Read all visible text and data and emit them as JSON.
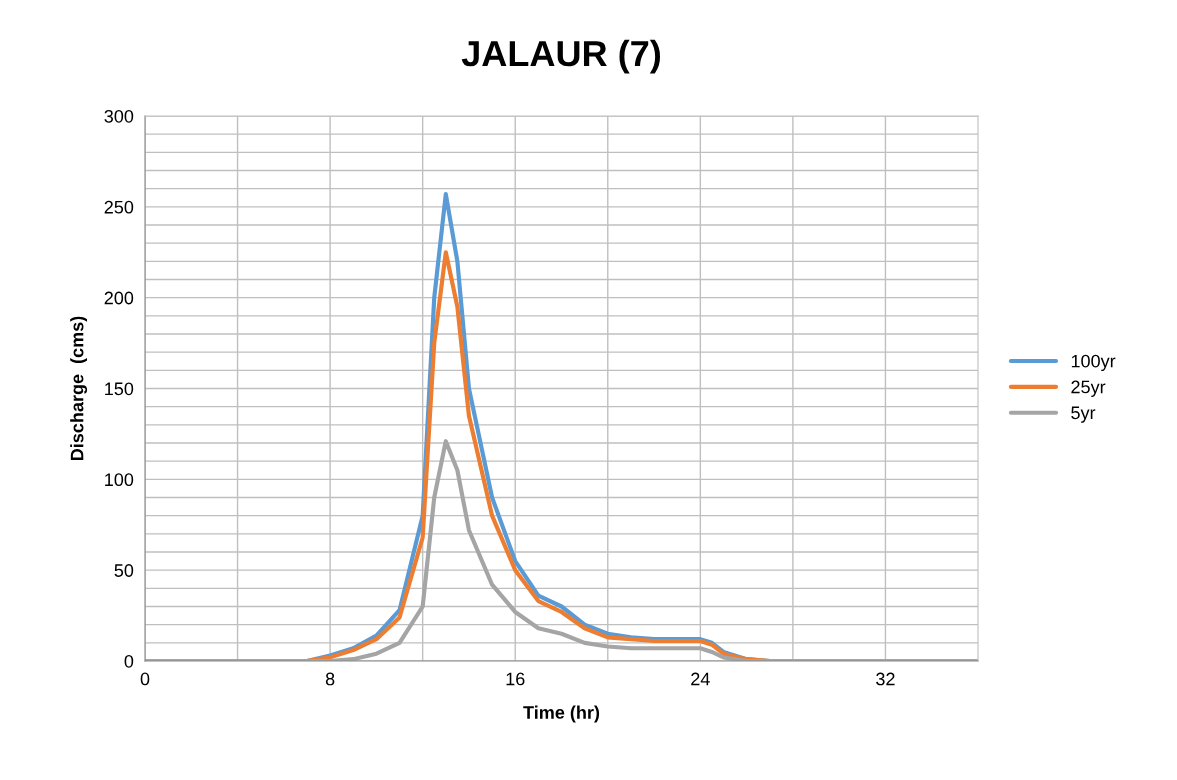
{
  "chart_data": {
    "type": "line",
    "title": "JALAUR (7)",
    "xlabel": "Time (hr)",
    "ylabel": "Discharge  (cms)",
    "x": [
      0,
      4,
      7,
      8,
      9,
      10,
      11,
      12,
      12.5,
      13,
      13.5,
      14,
      15,
      16,
      17,
      18,
      19,
      20,
      21,
      22,
      23,
      24,
      24.5,
      25,
      26,
      27,
      32,
      36
    ],
    "series": [
      {
        "name": "100yr",
        "color": "#5b9bd5",
        "values": [
          0,
          0,
          0,
          3,
          7,
          14,
          28,
          80,
          200,
          257,
          220,
          150,
          90,
          55,
          36,
          30,
          20,
          15,
          13,
          12,
          12,
          12,
          10,
          5,
          1,
          0,
          null,
          null
        ]
      },
      {
        "name": "25yr",
        "color": "#ed7d31",
        "values": [
          0,
          0,
          0,
          2,
          6,
          12,
          24,
          68,
          175,
          225,
          195,
          135,
          80,
          50,
          33,
          27,
          18,
          13,
          12,
          11,
          11,
          11,
          9,
          4,
          1,
          0,
          null,
          null
        ]
      },
      {
        "name": "5yr",
        "color": "#a5a5a5",
        "values": [
          0,
          0,
          0,
          0,
          1,
          4,
          10,
          30,
          90,
          121,
          105,
          72,
          42,
          27,
          18,
          15,
          10,
          8,
          7,
          7,
          7,
          7,
          5,
          2,
          0,
          0,
          0,
          0
        ]
      }
    ],
    "xlim": [
      0,
      36
    ],
    "xticks": [
      0,
      {
        "value": 4,
        "label": null
      },
      8,
      {
        "value": 12,
        "label": null
      },
      16,
      {
        "value": 20,
        "label": null
      },
      24,
      {
        "value": 28,
        "label": null
      },
      32
    ],
    "ylim": [
      0,
      300
    ],
    "yticks": [
      0,
      {
        "value": 10,
        "label": null
      },
      {
        "value": 20,
        "label": null
      },
      {
        "value": 30,
        "label": null
      },
      {
        "value": 40,
        "label": null
      },
      50,
      {
        "value": 60,
        "label": null
      },
      {
        "value": 70,
        "label": null
      },
      {
        "value": 80,
        "label": null
      },
      {
        "value": 90,
        "label": null
      },
      100,
      {
        "value": 110,
        "label": null
      },
      {
        "value": 120,
        "label": null
      },
      {
        "value": 130,
        "label": null
      },
      {
        "value": 140,
        "label": null
      },
      150,
      {
        "value": 160,
        "label": null
      },
      {
        "value": 170,
        "label": null
      },
      {
        "value": 180,
        "label": null
      },
      {
        "value": 190,
        "label": null
      },
      200,
      {
        "value": 210,
        "label": null
      },
      {
        "value": 220,
        "label": null
      },
      {
        "value": 230,
        "label": null
      },
      {
        "value": 240,
        "label": null
      },
      250,
      {
        "value": 260,
        "label": null
      },
      {
        "value": 270,
        "label": null
      },
      {
        "value": 280,
        "label": null
      },
      {
        "value": 290,
        "label": null
      },
      300
    ],
    "grid": true,
    "legend": "right",
    "marker": "none",
    "line_style": "solid"
  }
}
